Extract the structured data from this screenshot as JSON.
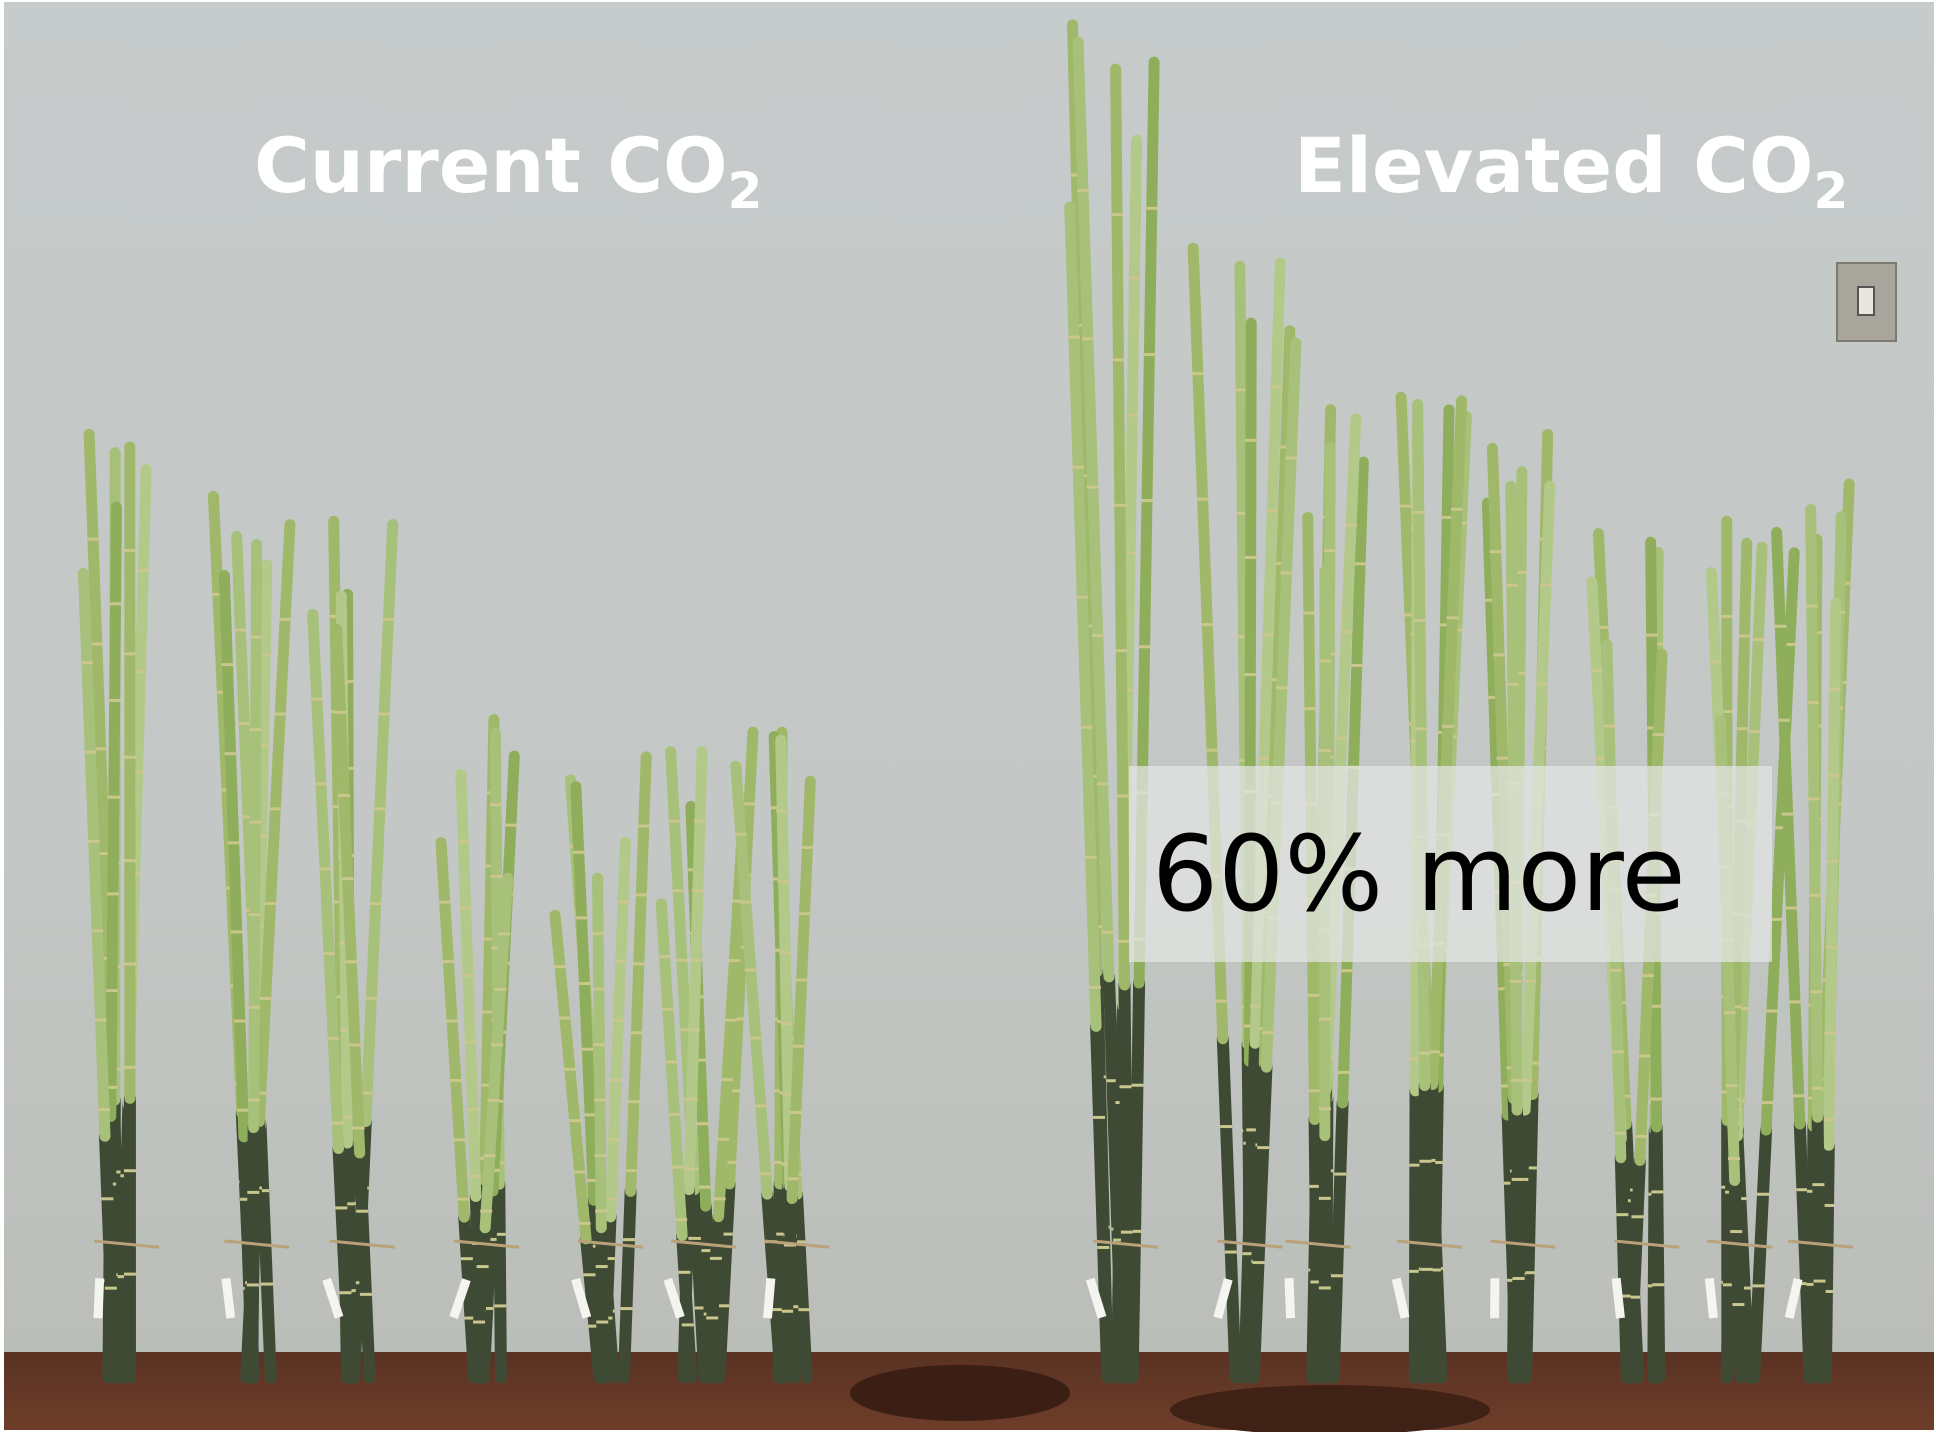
{
  "labels": [
    {
      "text": "Current CO",
      "subscript": "2"
    },
    {
      "text": "Elevated CO",
      "subscript": "2"
    }
  ],
  "callout": "60% more"
}
